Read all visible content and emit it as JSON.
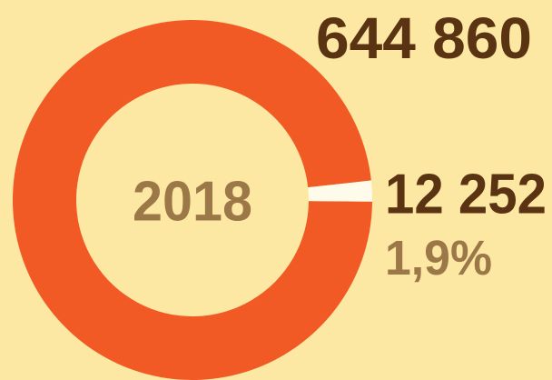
{
  "chart_data": {
    "type": "donut",
    "center_label": "2018",
    "categories": [
      null,
      null
    ],
    "values": [
      644860,
      12252
    ],
    "value_labels": [
      "644 860",
      "12 252"
    ],
    "annotation": "1,9%",
    "colors": [
      "#f15a24",
      "#fffbea"
    ]
  }
}
